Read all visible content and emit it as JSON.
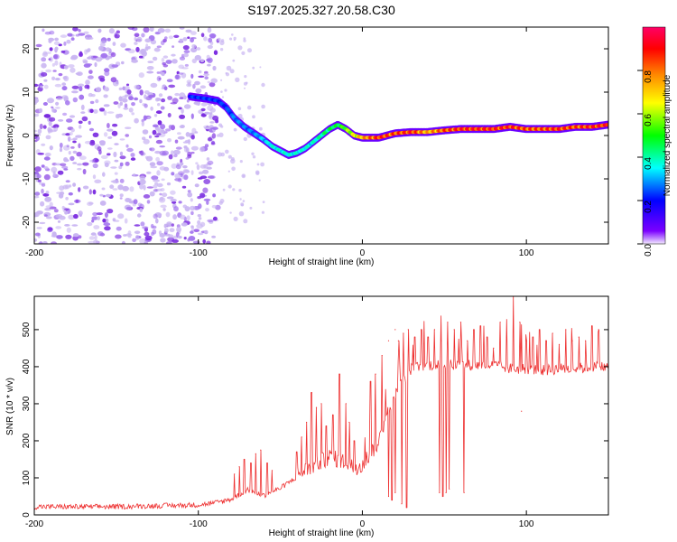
{
  "title": "S197.2025.327.20.58.C30",
  "colors": {
    "axis": "#000000",
    "snr_line": "#ee3030",
    "speckle_light": "#c9b5f2",
    "speckle_dark": "#7a2be0",
    "speckle_mid": "#a070ee"
  },
  "chart_data": [
    {
      "type": "heatmap",
      "xlabel": "Height of straight line (km)",
      "ylabel": "Frequency (Hz)",
      "xlim": [
        -200,
        150
      ],
      "ylim": [
        -25,
        25
      ],
      "x_ticks": [
        -200,
        -100,
        0,
        100
      ],
      "y_ticks": [
        20,
        10,
        0,
        -10,
        -20
      ],
      "x_tick_labels": [
        "-200",
        "-100",
        "0",
        "100"
      ],
      "y_tick_labels": [
        "20",
        "10",
        "0",
        "-10",
        "-20"
      ],
      "ridge_frequency": {
        "x": [
          -105,
          -95,
          -88,
          -83,
          -78,
          -72,
          -66,
          -60,
          -55,
          -50,
          -45,
          -40,
          -35,
          -30,
          -25,
          -20,
          -15,
          -10,
          -5,
          0,
          10,
          20,
          30,
          40,
          50,
          60,
          70,
          80,
          90,
          100,
          110,
          120,
          130,
          140,
          150
        ],
        "y": [
          9,
          8.5,
          8,
          6.5,
          4,
          2,
          0.5,
          -1,
          -2.5,
          -3.5,
          -4.5,
          -4,
          -3,
          -1.5,
          0,
          1.5,
          2.5,
          1.5,
          0,
          -0.5,
          -0.5,
          0.5,
          0.8,
          0.8,
          1.2,
          1.5,
          1.5,
          1.5,
          2,
          1.5,
          1.5,
          1.5,
          2,
          2,
          2.5
        ]
      },
      "ridge_amplitude": [
        0.25,
        0.25,
        0.25,
        0.25,
        0.3,
        0.3,
        0.3,
        0.35,
        0.4,
        0.4,
        0.4,
        0.4,
        0.4,
        0.4,
        0.45,
        0.5,
        0.5,
        0.6,
        0.7,
        0.8,
        0.95,
        0.9,
        0.95,
        0.8,
        0.9,
        0.95,
        0.95,
        0.95,
        0.95,
        0.9,
        0.9,
        0.95,
        0.9,
        0.95,
        0.95
      ],
      "noise_region_x": [
        -200,
        -88
      ],
      "scattered_region_x": [
        -88,
        -60
      ]
    },
    {
      "type": "colorbar",
      "label": "Normalized spectral amplitude",
      "ticks": [
        0.0,
        0.2,
        0.4,
        0.6,
        0.8
      ],
      "tick_labels": [
        "0.0",
        "0.2",
        "0.4",
        "0.6",
        "0.8"
      ],
      "range": [
        0,
        1
      ],
      "colormap": [
        "#e8d8ff",
        "#7b00ff",
        "#0000ff",
        "#00ffff",
        "#00ff00",
        "#ffff00",
        "#ff8800",
        "#ff0000",
        "#ff0066"
      ]
    },
    {
      "type": "line",
      "xlabel": "Height of straight line (km)",
      "ylabel": "SNR (10 * v/v)",
      "xlim": [
        -200,
        150
      ],
      "ylim": [
        0,
        590
      ],
      "x_ticks": [
        -200,
        -100,
        0,
        100
      ],
      "y_ticks": [
        0,
        100,
        200,
        300,
        400,
        500
      ],
      "x_tick_labels": [
        "-200",
        "-100",
        "0",
        "100"
      ],
      "y_tick_labels": [
        "0",
        "100",
        "200",
        "300",
        "400",
        "500"
      ],
      "baseline": {
        "x": [
          -200,
          -150,
          -100,
          -90,
          -80,
          -70,
          -60,
          -50,
          -40,
          -30,
          -20,
          -10,
          -5,
          0,
          5,
          10,
          15,
          20,
          25,
          30,
          40,
          50,
          60,
          70,
          80,
          90,
          100,
          110,
          120,
          130,
          140,
          150
        ],
        "y": [
          20,
          20,
          25,
          30,
          40,
          65,
          50,
          70,
          100,
          125,
          150,
          135,
          120,
          130,
          160,
          190,
          270,
          320,
          360,
          390,
          400,
          400,
          400,
          400,
          400,
          390,
          390,
          385,
          390,
          390,
          395,
          395
        ]
      },
      "spikes": {
        "x": [
          -78,
          -75,
          -72,
          -68,
          -65,
          -62,
          -58,
          -55,
          -40,
          -37,
          -34,
          -31,
          -28,
          -25,
          -22,
          -18,
          -14,
          -10,
          -8,
          -5,
          5,
          8,
          12,
          16,
          20,
          22,
          25,
          28,
          32,
          36,
          40,
          44,
          48,
          52,
          56,
          60,
          64,
          68,
          72,
          76,
          80,
          84,
          88,
          92,
          96,
          100,
          104,
          108,
          112,
          116,
          120,
          124,
          128,
          132,
          136,
          140,
          144
        ],
        "y": [
          110,
          130,
          150,
          140,
          165,
          175,
          140,
          120,
          170,
          210,
          250,
          330,
          290,
          300,
          240,
          270,
          380,
          300,
          250,
          200,
          360,
          380,
          430,
          470,
          500,
          470,
          490,
          500,
          480,
          500,
          480,
          500,
          470,
          520,
          500,
          520,
          470,
          500,
          510,
          480,
          450,
          520,
          480,
          590,
          520,
          470,
          480,
          500,
          470,
          490,
          460,
          500,
          470,
          480,
          470,
          510,
          500
        ]
      },
      "dips": {
        "x": [
          16,
          18,
          20,
          24,
          27,
          47,
          49,
          51,
          53,
          62,
          97
        ],
        "y": [
          50,
          40,
          60,
          30,
          20,
          60,
          50,
          60,
          70,
          60,
          280
        ]
      }
    }
  ]
}
